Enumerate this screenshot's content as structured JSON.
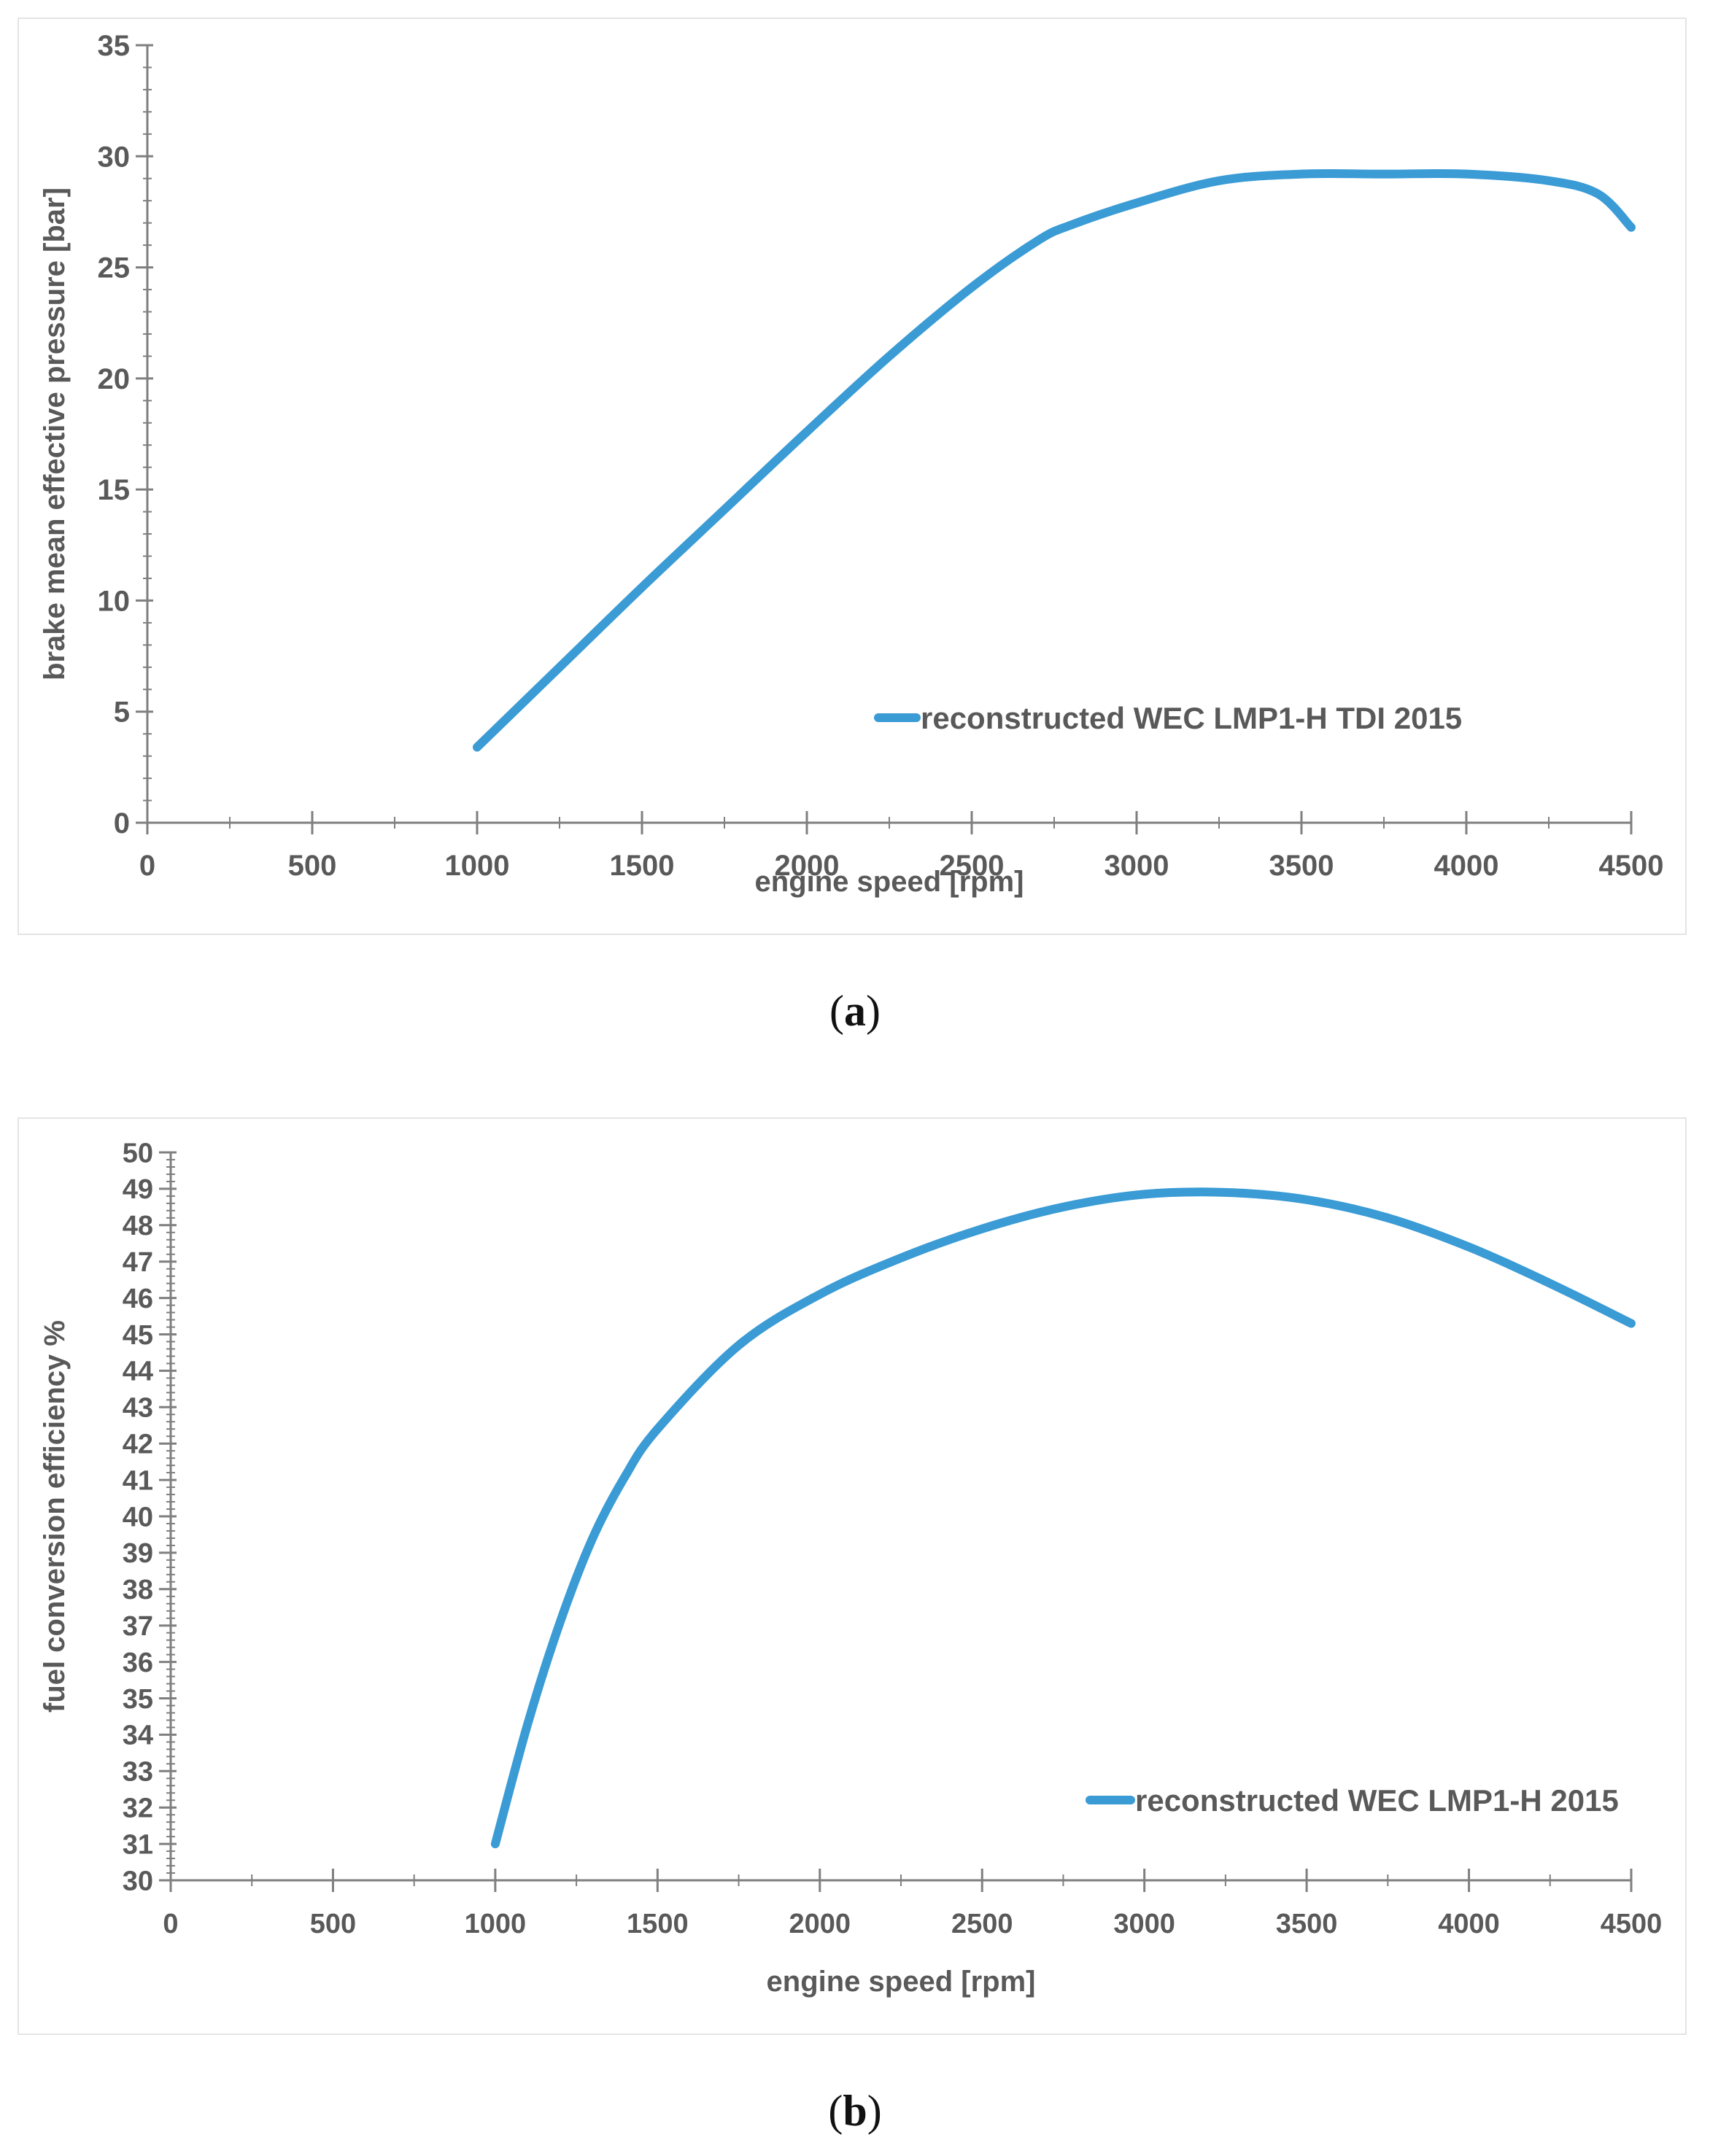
{
  "colors": {
    "series": "#3a9bd5",
    "axis": "#7f7f7f",
    "text": "#595959",
    "frame": "#e4e4e4"
  },
  "chart_data": [
    {
      "id": "a",
      "caption_letter": "a",
      "type": "line",
      "xlabel": "engine speed [rpm]",
      "ylabel": "brake mean effective pressure [bar]",
      "xlim": [
        0,
        4500
      ],
      "ylim": [
        0,
        35
      ],
      "x_ticks": [
        0,
        500,
        1000,
        1500,
        2000,
        2500,
        3000,
        3500,
        4000,
        4500
      ],
      "y_ticks": [
        0,
        5,
        10,
        15,
        20,
        25,
        30,
        35
      ],
      "x_minor_step": 250,
      "y_minor_step": 1,
      "grid": false,
      "legend_position": "lower-right",
      "series": [
        {
          "name": "reconstructed WEC LMP1-H TDI 2015",
          "x": [
            1000,
            1250,
            1500,
            1750,
            2000,
            2250,
            2500,
            2700,
            2800,
            3000,
            3250,
            3500,
            3750,
            4000,
            4250,
            4400,
            4500
          ],
          "y": [
            3.4,
            7.0,
            10.6,
            14.1,
            17.6,
            21.0,
            24.1,
            26.2,
            26.9,
            27.9,
            28.9,
            29.2,
            29.2,
            29.2,
            28.9,
            28.3,
            26.8
          ]
        }
      ]
    },
    {
      "id": "b",
      "caption_letter": "b",
      "type": "line",
      "xlabel": "engine speed [rpm]",
      "ylabel": "fuel conversion efficiency %",
      "xlim": [
        0,
        4500
      ],
      "ylim": [
        30,
        50
      ],
      "x_ticks": [
        0,
        500,
        1000,
        1500,
        2000,
        2500,
        3000,
        3500,
        4000,
        4500
      ],
      "y_ticks": [
        30,
        31,
        32,
        33,
        34,
        35,
        36,
        37,
        38,
        39,
        40,
        41,
        42,
        43,
        44,
        45,
        46,
        47,
        48,
        49,
        50
      ],
      "x_minor_step": 250,
      "y_minor_step": 0.2,
      "grid": false,
      "legend_position": "lower-right",
      "series": [
        {
          "name": "reconstructed WEC LMP1-H 2015",
          "x": [
            1000,
            1100,
            1200,
            1300,
            1400,
            1500,
            1750,
            2000,
            2250,
            2500,
            2750,
            3000,
            3250,
            3500,
            3750,
            4000,
            4250,
            4500
          ],
          "y": [
            31.0,
            34.3,
            37.1,
            39.4,
            41.1,
            42.4,
            44.7,
            46.1,
            47.1,
            47.9,
            48.5,
            48.85,
            48.9,
            48.7,
            48.2,
            47.4,
            46.4,
            45.3
          ]
        }
      ]
    }
  ]
}
